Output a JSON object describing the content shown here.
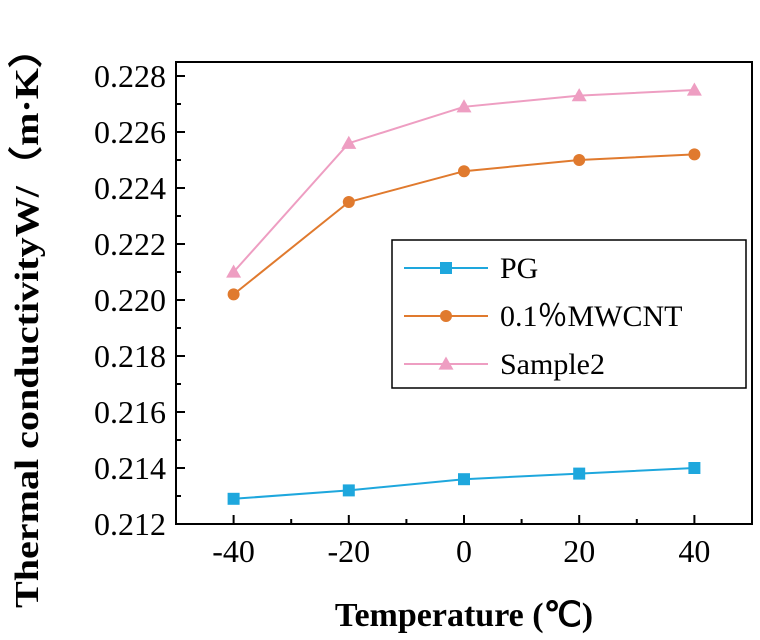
{
  "chart_data": {
    "type": "line",
    "title": "",
    "xlabel": "Temperature (℃)",
    "ylabel": "Thermal conductivityW/（m·K）",
    "x": [
      -40,
      -20,
      0,
      20,
      40
    ],
    "xlim": [
      -50,
      50
    ],
    "ylim": [
      0.212,
      0.2285
    ],
    "xticks": [
      "-40",
      "-20",
      "0",
      "20",
      "40"
    ],
    "yticks": [
      "0.212",
      "0.214",
      "0.216",
      "0.218",
      "0.220",
      "0.222",
      "0.224",
      "0.226",
      "0.228"
    ],
    "grid": false,
    "legend_position": "center-right",
    "series": [
      {
        "name": "PG",
        "values": [
          0.2129,
          0.2132,
          0.2136,
          0.2138,
          0.214
        ],
        "color": "#1ea7dd",
        "marker": "square"
      },
      {
        "name": "0.1％MWCNT",
        "values": [
          0.2202,
          0.2235,
          0.2246,
          0.225,
          0.2252
        ],
        "color": "#e07a2e",
        "marker": "circle"
      },
      {
        "name": "Sample2",
        "values": [
          0.221,
          0.2256,
          0.2269,
          0.2273,
          0.2275
        ],
        "color": "#ee9ec2",
        "marker": "triangle"
      }
    ]
  }
}
